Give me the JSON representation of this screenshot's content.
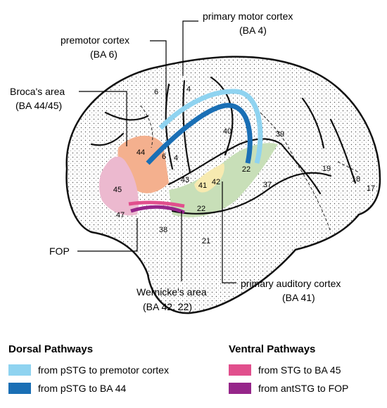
{
  "labels": {
    "primary_motor": [
      "primary motor cortex",
      "(BA 4)"
    ],
    "premotor": [
      "premotor cortex",
      "(BA 6)"
    ],
    "broca": [
      "Broca's area",
      "(BA 44/45)"
    ],
    "fop": "FOP",
    "wernicke": [
      "Wernicke's area",
      "(BA 42, 22)"
    ],
    "primary_auditory": [
      "primary auditory cortex",
      "(BA 41)"
    ]
  },
  "areas": [
    "6",
    "4",
    "44",
    "6",
    "4",
    "40",
    "39",
    "22",
    "45",
    "43",
    "41",
    "42",
    "47",
    "22",
    "38",
    "21",
    "37",
    "19",
    "18",
    "17"
  ],
  "legend": {
    "dorsal": {
      "title": "Dorsal Pathways",
      "items": [
        {
          "label": "from pSTG to premotor cortex",
          "color": "#8fd3f0"
        },
        {
          "label": "from pSTG to BA 44",
          "color": "#1a6fb5"
        }
      ]
    },
    "ventral": {
      "title": "Ventral Pathways",
      "items": [
        {
          "label": "from STG to BA 45",
          "color": "#e14f8d"
        },
        {
          "label": "from antSTG to FOP",
          "color": "#96268a"
        }
      ]
    }
  },
  "colors": {
    "broca_44": "#f4b08e",
    "broca_45": "#ecb9cf",
    "wernicke": "#c8dfb8",
    "auditory": "#f7eab0"
  }
}
